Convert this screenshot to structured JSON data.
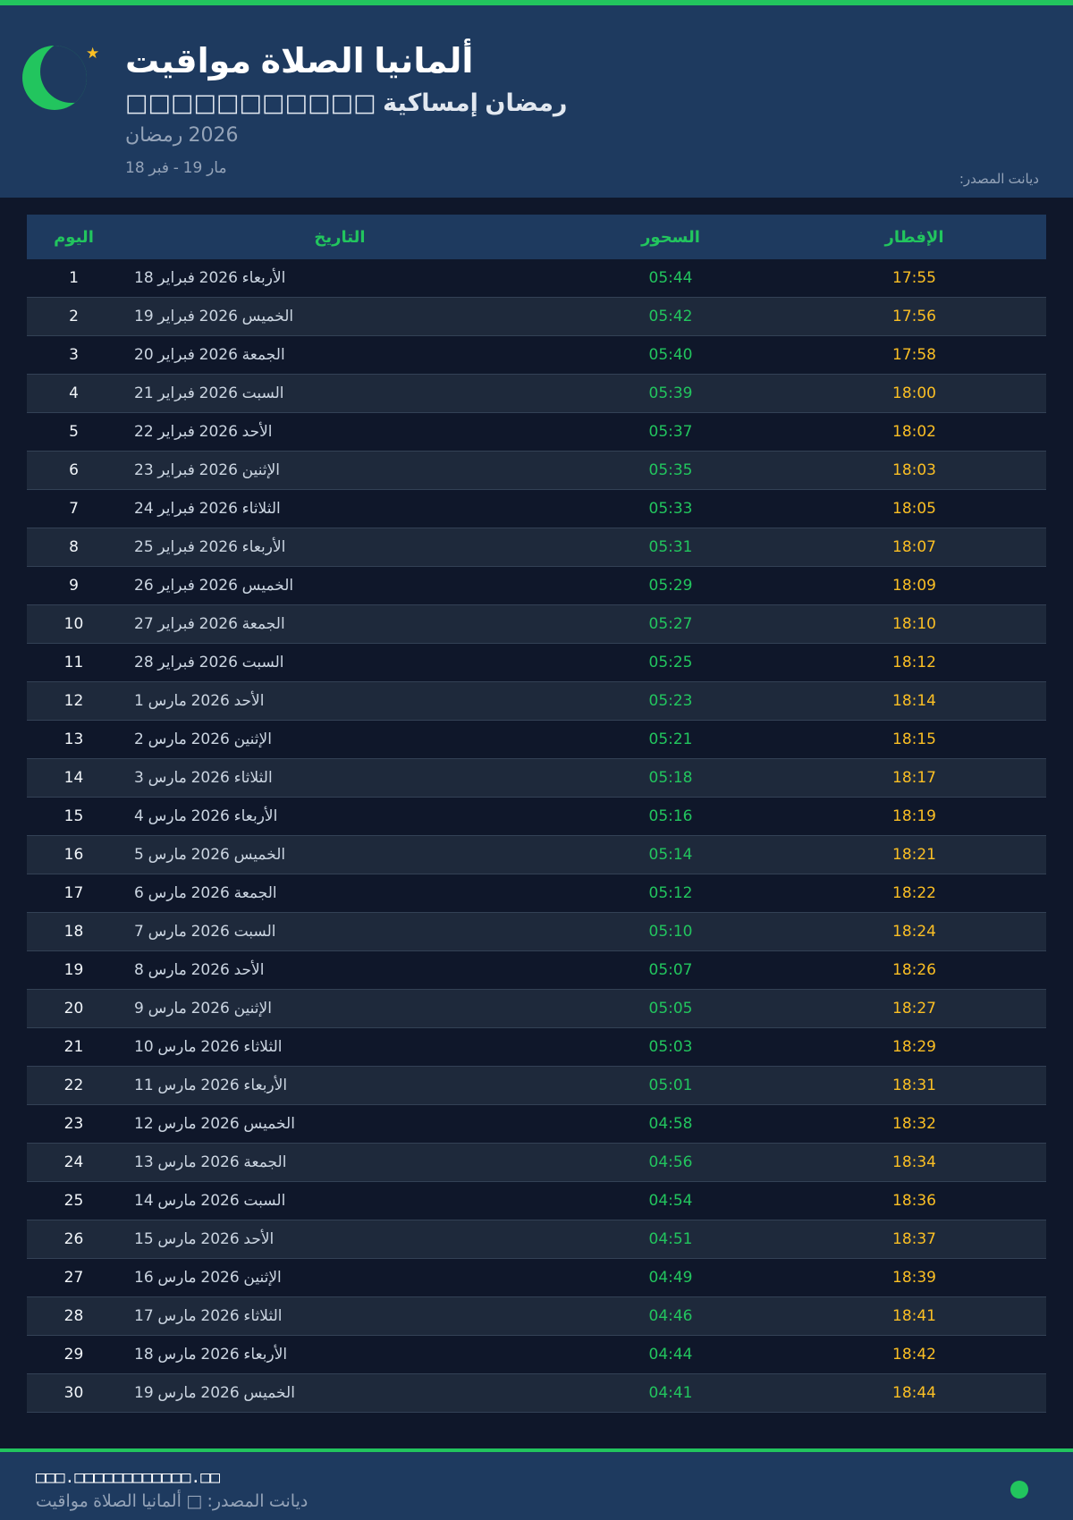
{
  "header": {
    "title": "مواقيت الصلاة ألمانيا",
    "subtitle": "□□□□□□□□□□□ إمساكية رمضان",
    "year": "رمضان 2026",
    "range": "18 فبر - 19 مار",
    "source": "المصدر: ديانت",
    "icons": [
      "crescent-moon-icon",
      "star-icon"
    ]
  },
  "colors": {
    "accent": "#22c55e",
    "iftar": "#fbbf24",
    "header_bg": "#1e3a5f",
    "page_bg": "#0f172a"
  },
  "table": {
    "columns": [
      "اليوم",
      "التاريخ",
      "السحور",
      "الإفطار"
    ],
    "rows": [
      {
        "day": "1",
        "date": "18 فبراير 2026 الأربعاء",
        "suhoor": "05:44",
        "iftar": "17:55"
      },
      {
        "day": "2",
        "date": "19 فبراير 2026 الخميس",
        "suhoor": "05:42",
        "iftar": "17:56"
      },
      {
        "day": "3",
        "date": "20 فبراير 2026 الجمعة",
        "suhoor": "05:40",
        "iftar": "17:58"
      },
      {
        "day": "4",
        "date": "21 فبراير 2026 السبت",
        "suhoor": "05:39",
        "iftar": "18:00"
      },
      {
        "day": "5",
        "date": "22 فبراير 2026 الأحد",
        "suhoor": "05:37",
        "iftar": "18:02"
      },
      {
        "day": "6",
        "date": "23 فبراير 2026 الإثنين",
        "suhoor": "05:35",
        "iftar": "18:03"
      },
      {
        "day": "7",
        "date": "24 فبراير 2026 الثلاثاء",
        "suhoor": "05:33",
        "iftar": "18:05"
      },
      {
        "day": "8",
        "date": "25 فبراير 2026 الأربعاء",
        "suhoor": "05:31",
        "iftar": "18:07"
      },
      {
        "day": "9",
        "date": "26 فبراير 2026 الخميس",
        "suhoor": "05:29",
        "iftar": "18:09"
      },
      {
        "day": "10",
        "date": "27 فبراير 2026 الجمعة",
        "suhoor": "05:27",
        "iftar": "18:10"
      },
      {
        "day": "11",
        "date": "28 فبراير 2026 السبت",
        "suhoor": "05:25",
        "iftar": "18:12"
      },
      {
        "day": "12",
        "date": "1 مارس 2026 الأحد",
        "suhoor": "05:23",
        "iftar": "18:14"
      },
      {
        "day": "13",
        "date": "2 مارس 2026 الإثنين",
        "suhoor": "05:21",
        "iftar": "18:15"
      },
      {
        "day": "14",
        "date": "3 مارس 2026 الثلاثاء",
        "suhoor": "05:18",
        "iftar": "18:17"
      },
      {
        "day": "15",
        "date": "4 مارس 2026 الأربعاء",
        "suhoor": "05:16",
        "iftar": "18:19"
      },
      {
        "day": "16",
        "date": "5 مارس 2026 الخميس",
        "suhoor": "05:14",
        "iftar": "18:21"
      },
      {
        "day": "17",
        "date": "6 مارس 2026 الجمعة",
        "suhoor": "05:12",
        "iftar": "18:22"
      },
      {
        "day": "18",
        "date": "7 مارس 2026 السبت",
        "suhoor": "05:10",
        "iftar": "18:24"
      },
      {
        "day": "19",
        "date": "8 مارس 2026 الأحد",
        "suhoor": "05:07",
        "iftar": "18:26"
      },
      {
        "day": "20",
        "date": "9 مارس 2026 الإثنين",
        "suhoor": "05:05",
        "iftar": "18:27"
      },
      {
        "day": "21",
        "date": "10 مارس 2026 الثلاثاء",
        "suhoor": "05:03",
        "iftar": "18:29"
      },
      {
        "day": "22",
        "date": "11 مارس 2026 الأربعاء",
        "suhoor": "05:01",
        "iftar": "18:31"
      },
      {
        "day": "23",
        "date": "12 مارس 2026 الخميس",
        "suhoor": "04:58",
        "iftar": "18:32"
      },
      {
        "day": "24",
        "date": "13 مارس 2026 الجمعة",
        "suhoor": "04:56",
        "iftar": "18:34"
      },
      {
        "day": "25",
        "date": "14 مارس 2026 السبت",
        "suhoor": "04:54",
        "iftar": "18:36"
      },
      {
        "day": "26",
        "date": "15 مارس 2026 الأحد",
        "suhoor": "04:51",
        "iftar": "18:37"
      },
      {
        "day": "27",
        "date": "16 مارس 2026 الإثنين",
        "suhoor": "04:49",
        "iftar": "18:39"
      },
      {
        "day": "28",
        "date": "17 مارس 2026 الثلاثاء",
        "suhoor": "04:46",
        "iftar": "18:41"
      },
      {
        "day": "29",
        "date": "18 مارس 2026 الأربعاء",
        "suhoor": "04:44",
        "iftar": "18:42"
      },
      {
        "day": "30",
        "date": "19 مارس 2026 الخميس",
        "suhoor": "04:41",
        "iftar": "18:44"
      }
    ]
  },
  "footer": {
    "website": "□□□.□□□□□□□□□□□□.□□",
    "caption": "مواقيت الصلاة ألمانيا □ المصدر: ديانت"
  }
}
